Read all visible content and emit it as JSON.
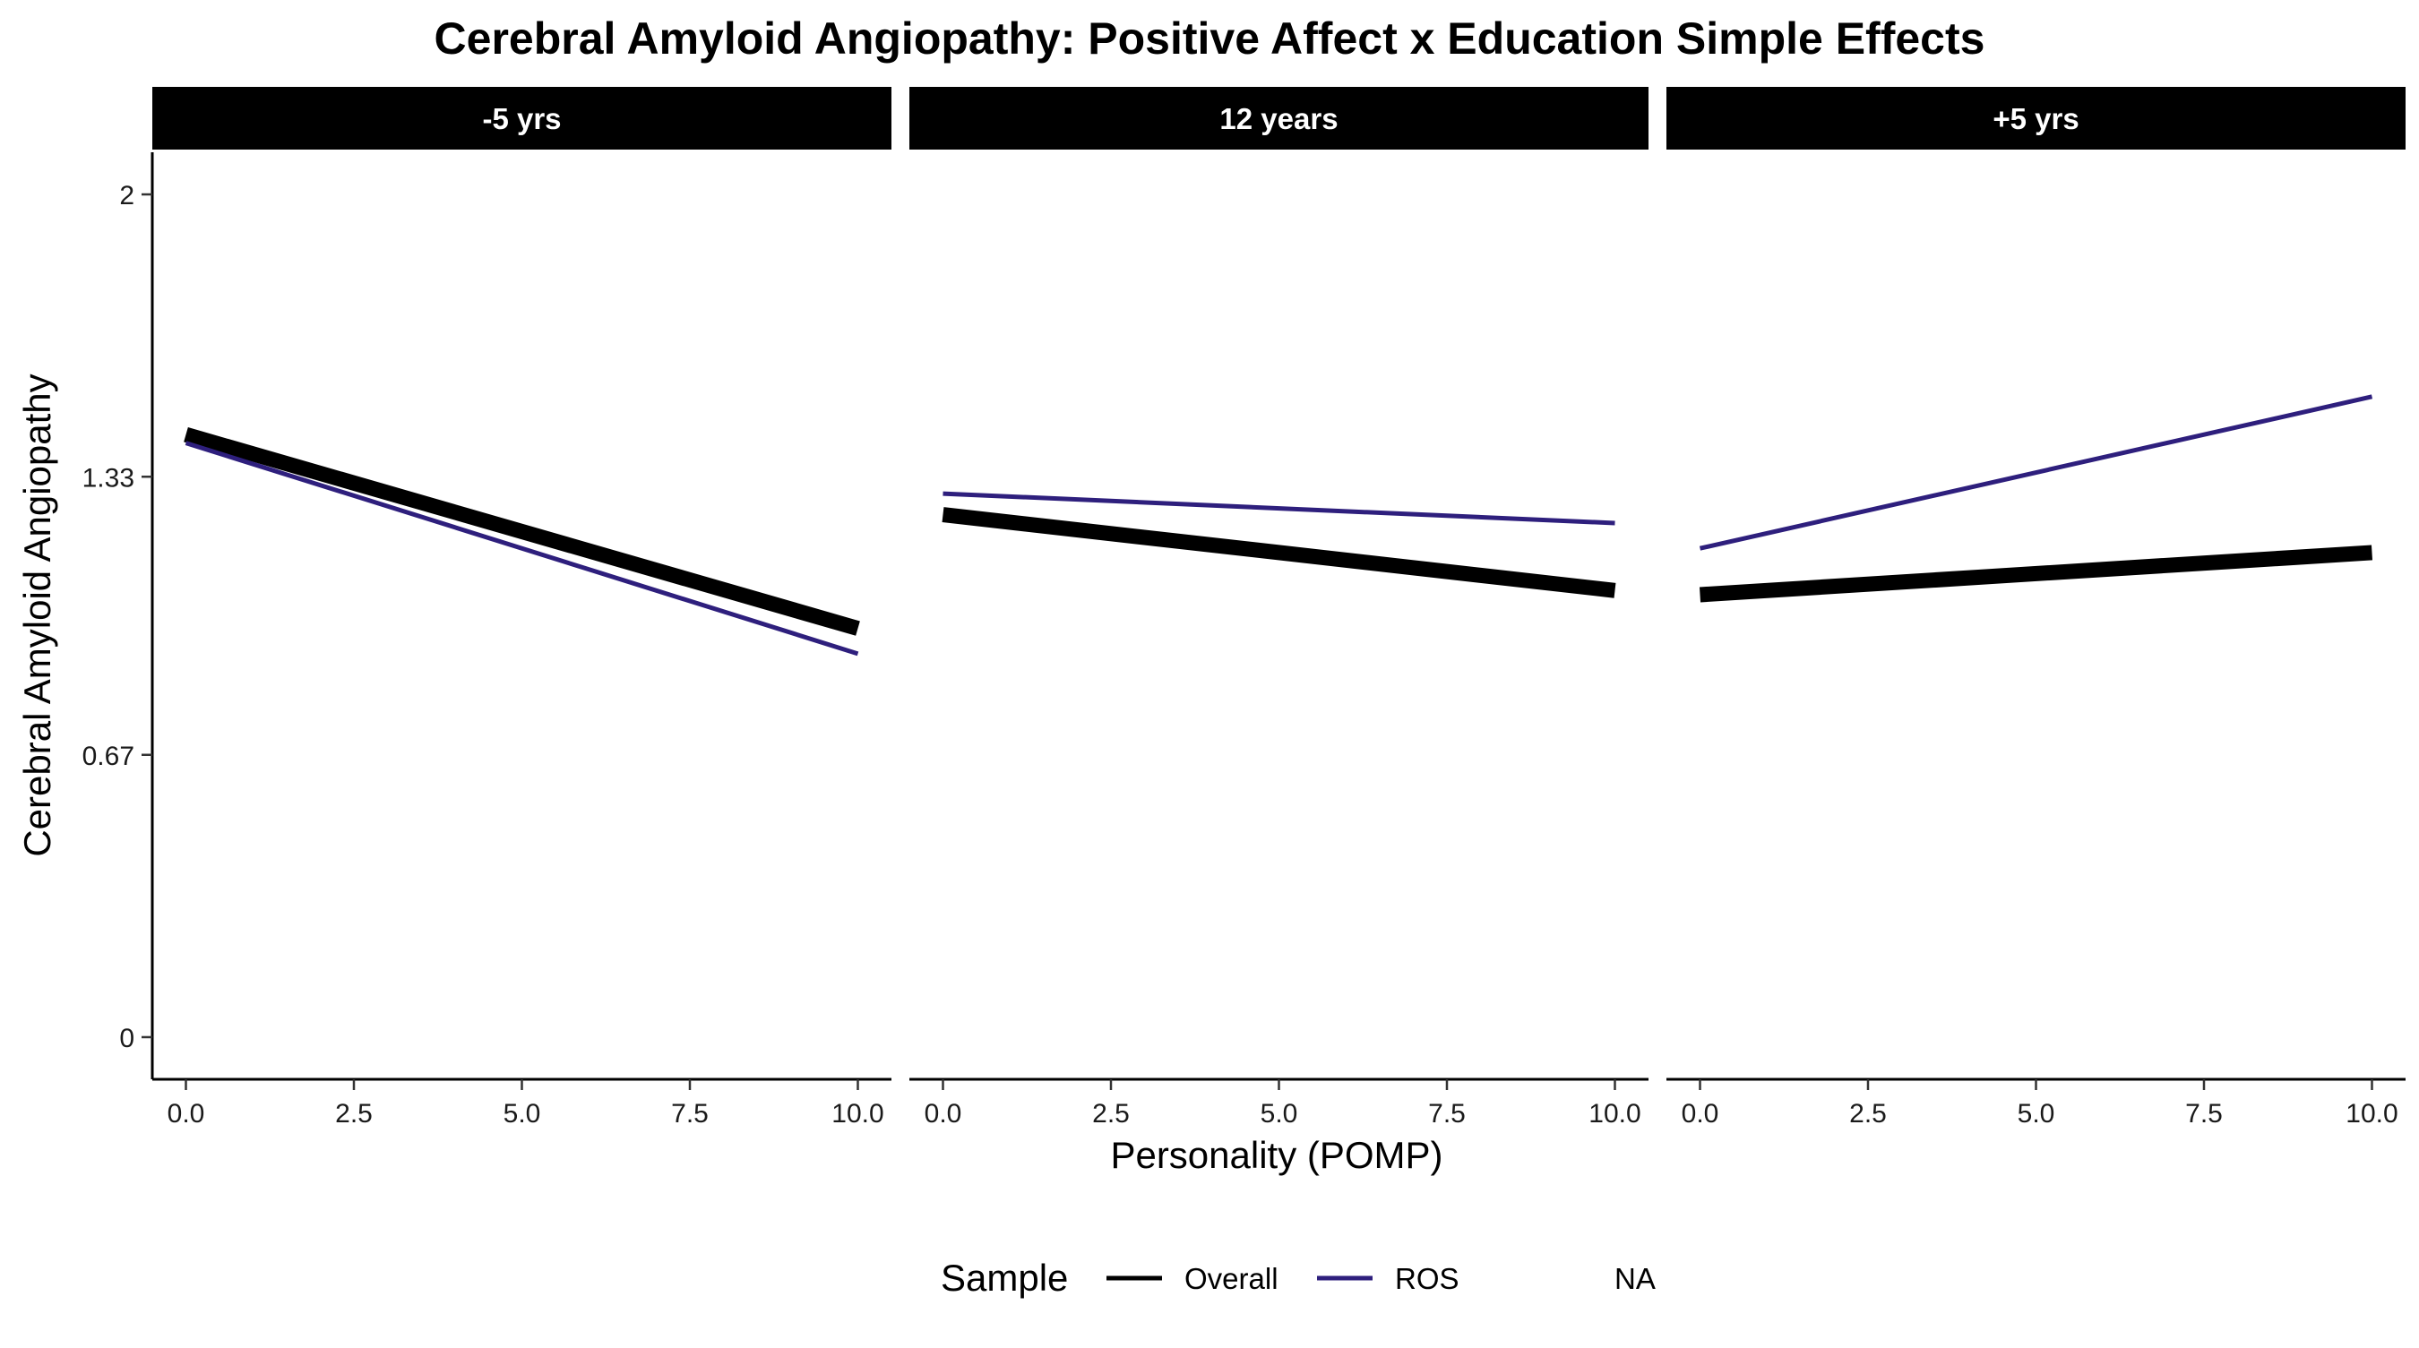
{
  "chart_data": {
    "type": "line",
    "title": "Cerebral Amyloid Angiopathy: Positive Affect x Education Simple Effects",
    "xlabel": "Personality (POMP)",
    "ylabel": "Cerebral Amyloid Angiopathy",
    "xlim": [
      -0.5,
      10.5
    ],
    "ylim": [
      -0.1,
      2.1
    ],
    "x_ticks": [
      0,
      2.5,
      5,
      7.5,
      10
    ],
    "x_tick_labels": [
      "0.0",
      "2.5",
      "5.0",
      "7.5",
      "10.0"
    ],
    "y_ticks": [
      0,
      0.67,
      1.33,
      2
    ],
    "y_tick_labels": [
      "0",
      "0.67",
      "1.33",
      "2"
    ],
    "grid": false,
    "legend": {
      "title": "Sample",
      "position": "bottom",
      "entries": [
        {
          "label": "Overall",
          "color": "#000000"
        },
        {
          "label": "ROS",
          "color": "#2e1f7d"
        },
        {
          "label": "NA",
          "color": null
        }
      ]
    },
    "panels": [
      {
        "label": "-5 yrs",
        "series": [
          {
            "name": "Overall",
            "color": "#000000",
            "x": [
              0,
              10
            ],
            "y": [
              1.43,
              0.97
            ]
          },
          {
            "name": "ROS",
            "color": "#2e1f7d",
            "x": [
              0,
              10
            ],
            "y": [
              1.41,
              0.91
            ]
          }
        ]
      },
      {
        "label": "12 years",
        "series": [
          {
            "name": "Overall",
            "color": "#000000",
            "x": [
              0,
              10
            ],
            "y": [
              1.24,
              1.06
            ]
          },
          {
            "name": "ROS",
            "color": "#2e1f7d",
            "x": [
              0,
              10
            ],
            "y": [
              1.29,
              1.22
            ]
          }
        ]
      },
      {
        "label": "+5 yrs",
        "series": [
          {
            "name": "Overall",
            "color": "#000000",
            "x": [
              0,
              10
            ],
            "y": [
              1.05,
              1.15
            ]
          },
          {
            "name": "ROS",
            "color": "#2e1f7d",
            "x": [
              0,
              10
            ],
            "y": [
              1.16,
              1.52
            ]
          }
        ]
      }
    ]
  }
}
